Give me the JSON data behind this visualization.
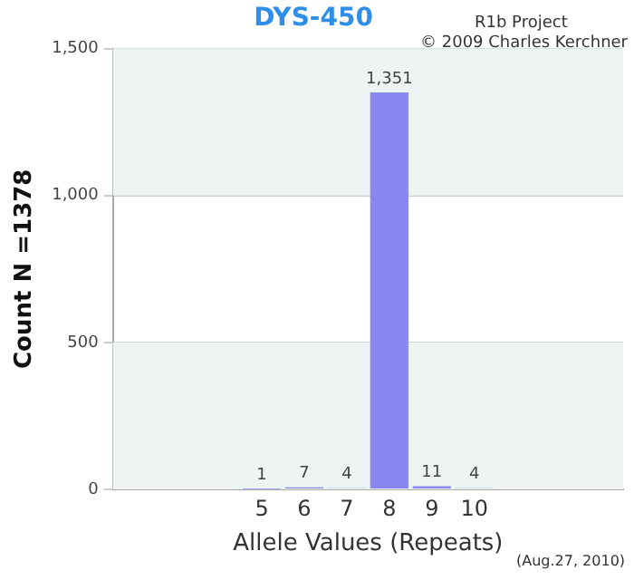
{
  "chart_data": {
    "type": "bar",
    "title": "DYS-450",
    "xlabel": "Allele Values (Repeats)",
    "ylabel": "Count N =1378",
    "categories": [
      null,
      null,
      null,
      "5",
      "6",
      "7",
      "8",
      "9",
      "10",
      null,
      null,
      null
    ],
    "values": [
      null,
      null,
      null,
      1,
      7,
      4,
      1351,
      11,
      4,
      null,
      null,
      null
    ],
    "value_labels": [
      null,
      null,
      null,
      "1",
      "7",
      "4",
      "1,351",
      "11",
      "4",
      null,
      null,
      null
    ],
    "color": "#8888f0",
    "ylim": [
      0,
      1500
    ],
    "yticks": [
      0,
      500,
      {
        "value": 1000,
        "label": "1,000"
      },
      {
        "value": 1500,
        "label": "1,500"
      }
    ],
    "grid": "y",
    "annotations": [
      "R1b Project",
      "© 2009 Charles Kerchner",
      "(Aug.27, 2010)"
    ]
  }
}
